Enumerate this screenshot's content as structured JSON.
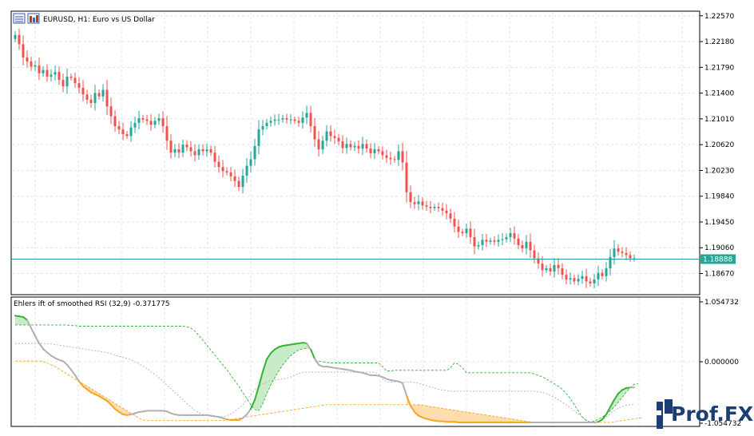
{
  "window": {
    "symbol_title": "EURUSD, H1:  Euro vs US Dollar",
    "indicator_title": "Ehlers ift of smoothed RSI (32,9) -0.371775",
    "toolbar_icons": [
      "chart-properties-icon",
      "market-watch-icon"
    ]
  },
  "watermark": {
    "text": "Prof.FX"
  },
  "colors": {
    "background": "#ffffff",
    "grid": "#e3e3e3",
    "bull": "#26a69a",
    "bear": "#ef5350",
    "price_line": "#2a9d9d",
    "price_tag_bg": "#26a69a",
    "ift_up": "#33b333",
    "ift_down": "#f5a623",
    "ift_neutral": "#b0b0b0",
    "fill_up": "#c8ecc8",
    "fill_down": "#ffdcae",
    "band_upper": "#33b333",
    "band_mid": "#b0b0b0",
    "band_lower": "#f5a623"
  },
  "price_axis": {
    "ticks": [
      "1.22570",
      "1.22180",
      "1.21790",
      "1.21400",
      "1.21010",
      "1.20620",
      "1.20230",
      "1.19840",
      "1.19450",
      "1.19060",
      "1.18670"
    ],
    "current_price": "1.18888"
  },
  "indicator_axis": {
    "ticks": [
      "1.054732",
      "0.000000",
      "-1.054732"
    ]
  },
  "chart_data": [
    {
      "type": "candlestick",
      "title": "EURUSD, H1:  Euro vs US Dollar",
      "ylim": [
        1.1835,
        1.2264
      ],
      "current_price": 1.18888,
      "grid": true,
      "close": [
        1.2228,
        1.2214,
        1.2194,
        1.2188,
        1.218,
        1.2182,
        1.217,
        1.2175,
        1.2165,
        1.2168,
        1.2172,
        1.216,
        1.215,
        1.2165,
        1.2163,
        1.2155,
        1.2148,
        1.2138,
        1.213,
        1.2125,
        1.214,
        1.2135,
        1.2145,
        1.212,
        1.2105,
        1.209,
        1.2085,
        1.2078,
        1.2075,
        1.2088,
        1.2095,
        1.2102,
        1.21,
        1.2098,
        1.2092,
        1.2098,
        1.2102,
        1.209,
        1.2068,
        1.205,
        1.2055,
        1.205,
        1.2062,
        1.2058,
        1.2052,
        1.2046,
        1.2055,
        1.2052,
        1.2055,
        1.205,
        1.2036,
        1.2028,
        1.2022,
        1.202,
        1.2014,
        1.2007,
        1.1998,
        1.2015,
        1.203,
        1.204,
        1.206,
        1.2085,
        1.209,
        1.2095,
        1.2098,
        1.21,
        1.21,
        1.2102,
        1.21,
        1.21,
        1.2098,
        1.2095,
        1.2103,
        1.211,
        1.209,
        1.207,
        1.2055,
        1.2068,
        1.2082,
        1.2075,
        1.2072,
        1.2067,
        1.2057,
        1.2063,
        1.2058,
        1.206,
        1.2056,
        1.2063,
        1.2056,
        1.2049,
        1.2055,
        1.2052,
        1.2046,
        1.2042,
        1.204,
        1.2039,
        1.2052,
        1.2035,
        1.199,
        1.1975,
        1.1972,
        1.1976,
        1.197,
        1.1968,
        1.1966,
        1.1968,
        1.1966,
        1.1962,
        1.1958,
        1.195,
        1.1938,
        1.193,
        1.1928,
        1.1935,
        1.1922,
        1.1908,
        1.191,
        1.1918,
        1.1915,
        1.1917,
        1.1915,
        1.1918,
        1.1919,
        1.1922,
        1.1928,
        1.192,
        1.191,
        1.1905,
        1.1915,
        1.1902,
        1.189,
        1.1882,
        1.1872,
        1.1875,
        1.187,
        1.188,
        1.1875,
        1.1865,
        1.1858,
        1.186,
        1.1855,
        1.1859,
        1.1863,
        1.1855,
        1.1852,
        1.1858,
        1.1868,
        1.1863,
        1.1875,
        1.1892,
        1.1905,
        1.19,
        1.1898,
        1.1895,
        1.189,
        1.189
      ]
    },
    {
      "type": "line",
      "title": "Ehlers ift of smoothed RSI (32,9) -0.371775",
      "ylim": [
        -1.054732,
        1.054732
      ],
      "grid": true,
      "series": [
        {
          "key": "ift",
          "values": [
            0.75,
            0.74,
            0.73,
            0.68,
            0.55,
            0.42,
            0.3,
            0.21,
            0.15,
            0.1,
            0.06,
            0.03,
            0.01,
            -0.05,
            -0.13,
            -0.22,
            -0.32,
            -0.4,
            -0.45,
            -0.5,
            -0.53,
            -0.56,
            -0.6,
            -0.64,
            -0.7,
            -0.77,
            -0.82,
            -0.86,
            -0.87,
            -0.86,
            -0.84,
            -0.82,
            -0.81,
            -0.8,
            -0.8,
            -0.8,
            -0.8,
            -0.8,
            -0.81,
            -0.84,
            -0.86,
            -0.87,
            -0.87,
            -0.87,
            -0.87,
            -0.87,
            -0.87,
            -0.87,
            -0.87,
            -0.88,
            -0.89,
            -0.9,
            -0.92,
            -0.94,
            -0.95,
            -0.95,
            -0.95,
            -0.92,
            -0.86,
            -0.77,
            -0.62,
            -0.4,
            -0.16,
            0.04,
            0.14,
            0.2,
            0.24,
            0.26,
            0.27,
            0.28,
            0.29,
            0.3,
            0.31,
            0.3,
            0.2,
            0.05,
            -0.05,
            -0.08,
            -0.08,
            -0.09,
            -0.1,
            -0.11,
            -0.12,
            -0.13,
            -0.14,
            -0.16,
            -0.17,
            -0.18,
            -0.2,
            -0.22,
            -0.22,
            -0.23,
            -0.25,
            -0.28,
            -0.3,
            -0.31,
            -0.32,
            -0.35,
            -0.55,
            -0.72,
            -0.82,
            -0.88,
            -0.91,
            -0.93,
            -0.95,
            -0.96,
            -0.97,
            -0.97,
            -0.98,
            -0.98,
            -0.98,
            -0.99,
            -0.99,
            -0.99,
            -0.99,
            -0.99,
            -0.99,
            -0.99,
            -0.99,
            -0.99,
            -0.99,
            -0.99,
            -0.99,
            -0.99,
            -0.99,
            -0.99,
            -0.99,
            -0.99,
            -0.99,
            -0.99,
            -0.99,
            -0.99,
            -0.99,
            -0.99,
            -0.99,
            -0.99,
            -0.99,
            -0.99,
            -0.99,
            -0.99,
            -0.99,
            -0.99,
            -0.99,
            -0.99,
            -0.99,
            -0.99,
            -0.98,
            -0.94,
            -0.86,
            -0.74,
            -0.62,
            -0.52,
            -0.46,
            -0.43,
            -0.42,
            -0.42
          ]
        },
        {
          "key": "upper_band",
          "values": [
            0.6,
            0.6,
            0.6,
            0.6,
            0.6,
            0.6,
            0.6,
            0.6,
            0.6,
            0.6,
            0.6,
            0.6,
            0.6,
            0.6,
            0.59,
            0.59,
            0.58,
            0.58,
            0.58,
            0.58,
            0.58,
            0.58,
            0.58,
            0.58,
            0.58,
            0.58,
            0.58,
            0.58,
            0.58,
            0.58,
            0.58,
            0.58,
            0.58,
            0.58,
            0.58,
            0.58,
            0.58,
            0.58,
            0.58,
            0.58,
            0.58,
            0.58,
            0.58,
            0.57,
            0.55,
            0.5,
            0.43,
            0.35,
            0.27,
            0.19,
            0.11,
            0.03,
            -0.05,
            -0.13,
            -0.22,
            -0.31,
            -0.4,
            -0.5,
            -0.6,
            -0.7,
            -0.78,
            -0.8,
            -0.68,
            -0.52,
            -0.38,
            -0.26,
            -0.15,
            -0.05,
            0.03,
            0.1,
            0.15,
            0.19,
            0.21,
            0.22,
            0.22,
            0.02,
            0.01,
            0.0,
            -0.01,
            -0.02,
            -0.02,
            -0.02,
            -0.02,
            -0.02,
            -0.02,
            -0.02,
            -0.02,
            -0.02,
            -0.02,
            -0.02,
            -0.02,
            -0.02,
            -0.08,
            -0.15,
            -0.15,
            -0.14,
            -0.14,
            -0.14,
            -0.14,
            -0.14,
            -0.14,
            -0.14,
            -0.14,
            -0.14,
            -0.14,
            -0.14,
            -0.14,
            -0.14,
            -0.14,
            -0.1,
            -0.02,
            -0.04,
            -0.1,
            -0.18,
            -0.18,
            -0.18,
            -0.18,
            -0.18,
            -0.18,
            -0.18,
            -0.18,
            -0.18,
            -0.18,
            -0.18,
            -0.18,
            -0.18,
            -0.18,
            -0.18,
            -0.18,
            -0.18,
            -0.2,
            -0.22,
            -0.25,
            -0.28,
            -0.32,
            -0.36,
            -0.4,
            -0.45,
            -0.52,
            -0.6,
            -0.7,
            -0.8,
            -0.9,
            -0.96,
            -0.98,
            -0.97,
            -0.94,
            -0.9,
            -0.86,
            -0.8,
            -0.74,
            -0.66,
            -0.58,
            -0.5,
            -0.42,
            -0.37,
            -0.36
          ]
        },
        {
          "key": "mid_band",
          "values": [
            0.3,
            0.3,
            0.3,
            0.3,
            0.3,
            0.3,
            0.3,
            0.3,
            0.29,
            0.29,
            0.28,
            0.27,
            0.26,
            0.25,
            0.24,
            0.23,
            0.22,
            0.21,
            0.2,
            0.19,
            0.18,
            0.17,
            0.16,
            0.15,
            0.13,
            0.11,
            0.09,
            0.07,
            0.05,
            0.03,
            0.0,
            -0.03,
            -0.07,
            -0.11,
            -0.16,
            -0.21,
            -0.26,
            -0.32,
            -0.38,
            -0.44,
            -0.5,
            -0.56,
            -0.62,
            -0.68,
            -0.74,
            -0.79,
            -0.83,
            -0.86,
            -0.88,
            -0.89,
            -0.9,
            -0.9,
            -0.9,
            -0.88,
            -0.85,
            -0.81,
            -0.76,
            -0.7,
            -0.62,
            -0.54,
            -0.46,
            -0.4,
            -0.36,
            -0.33,
            -0.31,
            -0.3,
            -0.29,
            -0.28,
            -0.27,
            -0.25,
            -0.22,
            -0.19,
            -0.17,
            -0.17,
            -0.17,
            -0.17,
            -0.17,
            -0.17,
            -0.17,
            -0.17,
            -0.17,
            -0.17,
            -0.17,
            -0.17,
            -0.17,
            -0.17,
            -0.17,
            -0.17,
            -0.17,
            -0.17,
            -0.17,
            -0.2,
            -0.28,
            -0.33,
            -0.33,
            -0.33,
            -0.33,
            -0.33,
            -0.33,
            -0.33,
            -0.34,
            -0.35,
            -0.37,
            -0.39,
            -0.41,
            -0.43,
            -0.45,
            -0.46,
            -0.47,
            -0.48,
            -0.48,
            -0.48,
            -0.48,
            -0.48,
            -0.48,
            -0.48,
            -0.48,
            -0.48,
            -0.48,
            -0.48,
            -0.48,
            -0.48,
            -0.48,
            -0.48,
            -0.48,
            -0.48,
            -0.48,
            -0.48,
            -0.48,
            -0.48,
            -0.48,
            -0.49,
            -0.5,
            -0.52,
            -0.55,
            -0.58,
            -0.62,
            -0.66,
            -0.7,
            -0.75,
            -0.8,
            -0.85,
            -0.9,
            -0.95,
            -0.98,
            -0.99,
            -0.98,
            -0.95,
            -0.9,
            -0.85,
            -0.8,
            -0.76,
            -0.73,
            -0.71,
            -0.7,
            -0.69
          ]
        },
        {
          "key": "lower_band",
          "values": [
            0.01,
            0.01,
            0.01,
            0.01,
            0.01,
            0.01,
            0.01,
            0.0,
            -0.02,
            -0.05,
            -0.08,
            -0.12,
            -0.16,
            -0.2,
            -0.24,
            -0.28,
            -0.32,
            -0.36,
            -0.4,
            -0.44,
            -0.48,
            -0.52,
            -0.56,
            -0.6,
            -0.64,
            -0.68,
            -0.72,
            -0.76,
            -0.8,
            -0.84,
            -0.88,
            -0.92,
            -0.95,
            -0.96,
            -0.96,
            -0.96,
            -0.96,
            -0.96,
            -0.96,
            -0.96,
            -0.96,
            -0.96,
            -0.96,
            -0.96,
            -0.96,
            -0.96,
            -0.96,
            -0.96,
            -0.96,
            -0.96,
            -0.96,
            -0.96,
            -0.96,
            -0.95,
            -0.94,
            -0.93,
            -0.92,
            -0.91,
            -0.9,
            -0.89,
            -0.88,
            -0.87,
            -0.86,
            -0.85,
            -0.84,
            -0.83,
            -0.82,
            -0.81,
            -0.8,
            -0.79,
            -0.78,
            -0.77,
            -0.76,
            -0.75,
            -0.74,
            -0.73,
            -0.72,
            -0.71,
            -0.7,
            -0.7,
            -0.7,
            -0.7,
            -0.7,
            -0.7,
            -0.7,
            -0.7,
            -0.7,
            -0.7,
            -0.7,
            -0.7,
            -0.7,
            -0.7,
            -0.7,
            -0.7,
            -0.7,
            -0.7,
            -0.7,
            -0.7,
            -0.7,
            -0.7,
            -0.7,
            -0.7,
            -0.71,
            -0.72,
            -0.73,
            -0.74,
            -0.75,
            -0.76,
            -0.77,
            -0.78,
            -0.79,
            -0.8,
            -0.81,
            -0.82,
            -0.83,
            -0.84,
            -0.85,
            -0.86,
            -0.87,
            -0.88,
            -0.89,
            -0.9,
            -0.91,
            -0.92,
            -0.93,
            -0.94,
            -0.95,
            -0.96,
            -0.97,
            -0.98,
            -0.99,
            -0.99,
            -0.99,
            -0.99,
            -0.99,
            -0.99,
            -0.99,
            -0.99,
            -0.99,
            -0.99,
            -0.99,
            -0.99,
            -0.99,
            -0.99,
            -0.99,
            -0.99,
            -0.99,
            -0.99,
            -0.99,
            -0.99,
            -0.98,
            -0.97,
            -0.96,
            -0.95,
            -0.94,
            -0.93,
            -0.92,
            -0.92
          ]
        }
      ]
    }
  ]
}
